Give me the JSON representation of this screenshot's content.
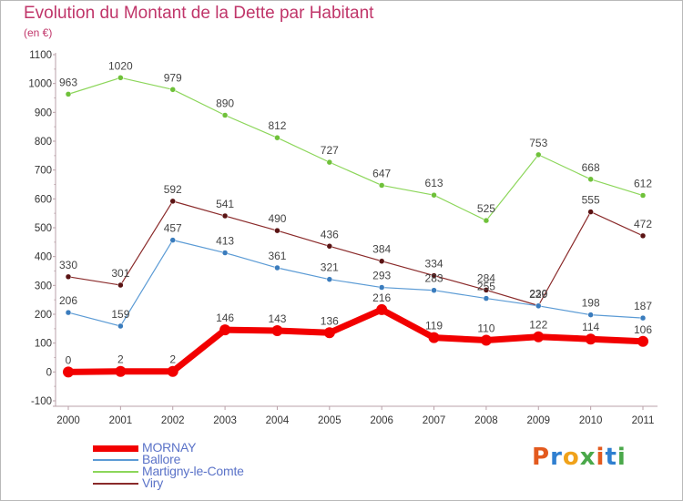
{
  "title": "Evolution du Montant de la Dette par Habitant",
  "unit": "(en €)",
  "logo": {
    "letters": [
      "P",
      "r",
      "o",
      "x",
      "i",
      "t",
      "i"
    ],
    "colors": [
      "#e35a1e",
      "#2f7fd0",
      "#f0a21a",
      "#4aa84a",
      "#e35a1e",
      "#2f7fd0",
      "#4aa84a"
    ]
  },
  "chart_data": {
    "type": "line",
    "x": [
      "2000",
      "2001",
      "2002",
      "2003",
      "2004",
      "2005",
      "2006",
      "2007",
      "2008",
      "2009",
      "2010",
      "2011"
    ],
    "ylim": [
      -100,
      1100
    ],
    "yticks": [
      "-100",
      "0",
      "100",
      "200",
      "300",
      "400",
      "500",
      "600",
      "700",
      "800",
      "900",
      "1000",
      "1100"
    ],
    "grid": false,
    "legend_position": "bottom-left",
    "series": [
      {
        "name": "Martigny-le-Comte",
        "color": "#8cd65a",
        "point_color": "#6fc13a",
        "width": 1.2,
        "values": [
          963,
          1020,
          979,
          890,
          812,
          727,
          647,
          613,
          525,
          753,
          668,
          612
        ],
        "labels": [
          "963",
          "1020",
          "979",
          "890",
          "812",
          "727",
          "647",
          "613",
          "525",
          "753",
          "668",
          "612"
        ]
      },
      {
        "name": "Viry",
        "color": "#8a2a2a",
        "point_color": "#5a1313",
        "width": 1.2,
        "values": [
          330,
          301,
          592,
          541,
          490,
          436,
          384,
          334,
          284,
          230,
          555,
          472
        ],
        "labels": [
          "330",
          "301",
          "592",
          "541",
          "490",
          "436",
          "384",
          "334",
          "284",
          "230",
          "555",
          "472"
        ]
      },
      {
        "name": "Ballore",
        "color": "#5b9bd5",
        "point_color": "#3a7cbd",
        "width": 1.2,
        "values": [
          206,
          159,
          457,
          413,
          361,
          321,
          293,
          283,
          255,
          229,
          198,
          187
        ],
        "labels": [
          "206",
          "159",
          "457",
          "413",
          "361",
          "321",
          "293",
          "283",
          "255",
          "229",
          "198",
          "187"
        ]
      },
      {
        "name": "MORNAY",
        "color": "#f20000",
        "point_color": "#f20000",
        "width": 7,
        "values": [
          0,
          2,
          2,
          146,
          143,
          136,
          216,
          119,
          110,
          122,
          114,
          106
        ],
        "labels": [
          "0",
          "2",
          "2",
          "146",
          "143",
          "136",
          "216",
          "119",
          "110",
          "122",
          "114",
          "106"
        ]
      }
    ],
    "legend": [
      {
        "name": "MORNAY",
        "color": "#f20000",
        "thickness": 7
      },
      {
        "name": "Ballore",
        "color": "#5b9bd5",
        "thickness": 2
      },
      {
        "name": "Martigny-le-Comte",
        "color": "#8cd65a",
        "thickness": 2
      },
      {
        "name": "Viry",
        "color": "#8a2a2a",
        "thickness": 2
      }
    ]
  }
}
